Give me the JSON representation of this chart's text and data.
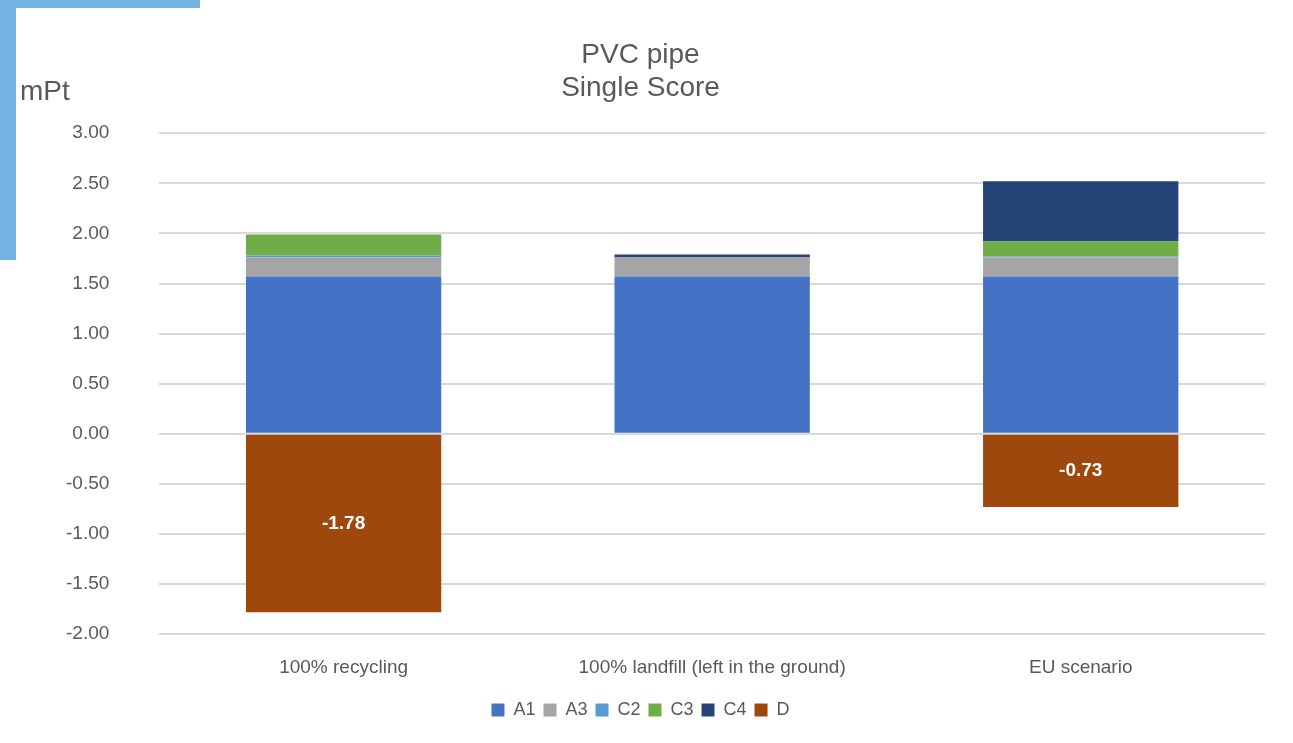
{
  "chart_data": {
    "type": "bar",
    "title": "PVC pipe",
    "subtitle": "Single Score",
    "ylabel": "mPt",
    "stacked": true,
    "categories": [
      "100% recycling",
      "100% landfill (left in the ground)",
      "EU scenario"
    ],
    "series": [
      {
        "name": "A1",
        "color": "#4472c4",
        "values": [
          1.57,
          1.57,
          1.57
        ]
      },
      {
        "name": "A3",
        "color": "#a5a5a5",
        "values": [
          0.19,
          0.19,
          0.19
        ]
      },
      {
        "name": "C2",
        "color": "#5b9bd5",
        "values": [
          0.02,
          null,
          0.01
        ]
      },
      {
        "name": "C3",
        "color": "#70ad47",
        "values": [
          0.21,
          null,
          0.15
        ]
      },
      {
        "name": "C4",
        "color": "#264478",
        "values": [
          null,
          0.03,
          0.6
        ]
      },
      {
        "name": "D",
        "color": "#9e480e",
        "values": [
          -1.78,
          null,
          -0.73
        ],
        "value_labels": [
          "-1.78",
          null,
          "-0.73"
        ]
      }
    ],
    "ylim": [
      -2,
      3
    ],
    "yticks": [
      {
        "value": -2,
        "label": "-2.00"
      },
      {
        "value": -1.5,
        "label": "-1.50"
      },
      {
        "value": -1,
        "label": "-1.00"
      },
      {
        "value": -0.5,
        "label": "-0.50"
      },
      {
        "value": 0,
        "label": "0.00"
      },
      {
        "value": 0.5,
        "label": "0.50"
      },
      {
        "value": 1,
        "label": "1.00"
      },
      {
        "value": 1.5,
        "label": "1.50"
      },
      {
        "value": 2,
        "label": "2.00"
      },
      {
        "value": 2.5,
        "label": "2.50"
      },
      {
        "value": 3,
        "label": "3.00"
      }
    ],
    "grid": "y",
    "legend": "bottom"
  }
}
